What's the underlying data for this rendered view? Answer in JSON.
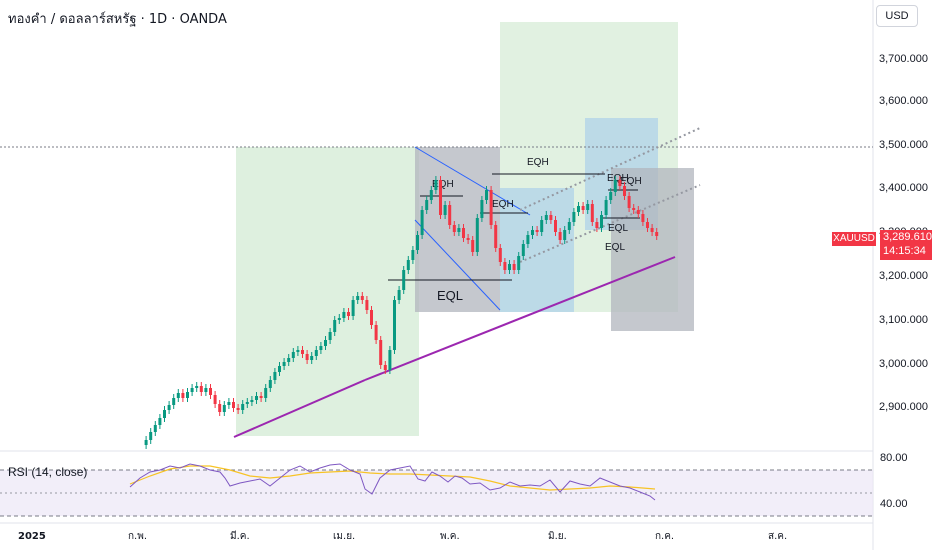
{
  "header": {
    "symbol_title": "ทองคำ / ดอลลาร์สหรัฐ · 1D · OANDA",
    "currency_button": "USD"
  },
  "price_axis": {
    "labels": [
      "3,700.000",
      "3,600.000",
      "3,500.000",
      "3,400.000",
      "3,300.000",
      "3,200.000",
      "3,100.000",
      "3,000.000",
      "2,900.000"
    ],
    "current_symbol": "XAUUSD",
    "current_price": "3,289.610",
    "countdown": "14:15:34"
  },
  "time_axis": {
    "labels": [
      "2025",
      "ก.พ.",
      "มี.ค.",
      "เม.ย.",
      "พ.ค.",
      "มิ.ย.",
      "ก.ค.",
      "ส.ค."
    ]
  },
  "rsi": {
    "label": "RSI (14, close)",
    "axis_labels": [
      "80.00",
      "40.00"
    ]
  },
  "annotations": {
    "eqh": "EQH",
    "eql": "EQL"
  },
  "colors": {
    "up": "#089981",
    "down": "#f23645",
    "trendline": "#9c27b0",
    "rsi_line": "#7e57c2",
    "rsi_ma": "#f7c325"
  }
}
